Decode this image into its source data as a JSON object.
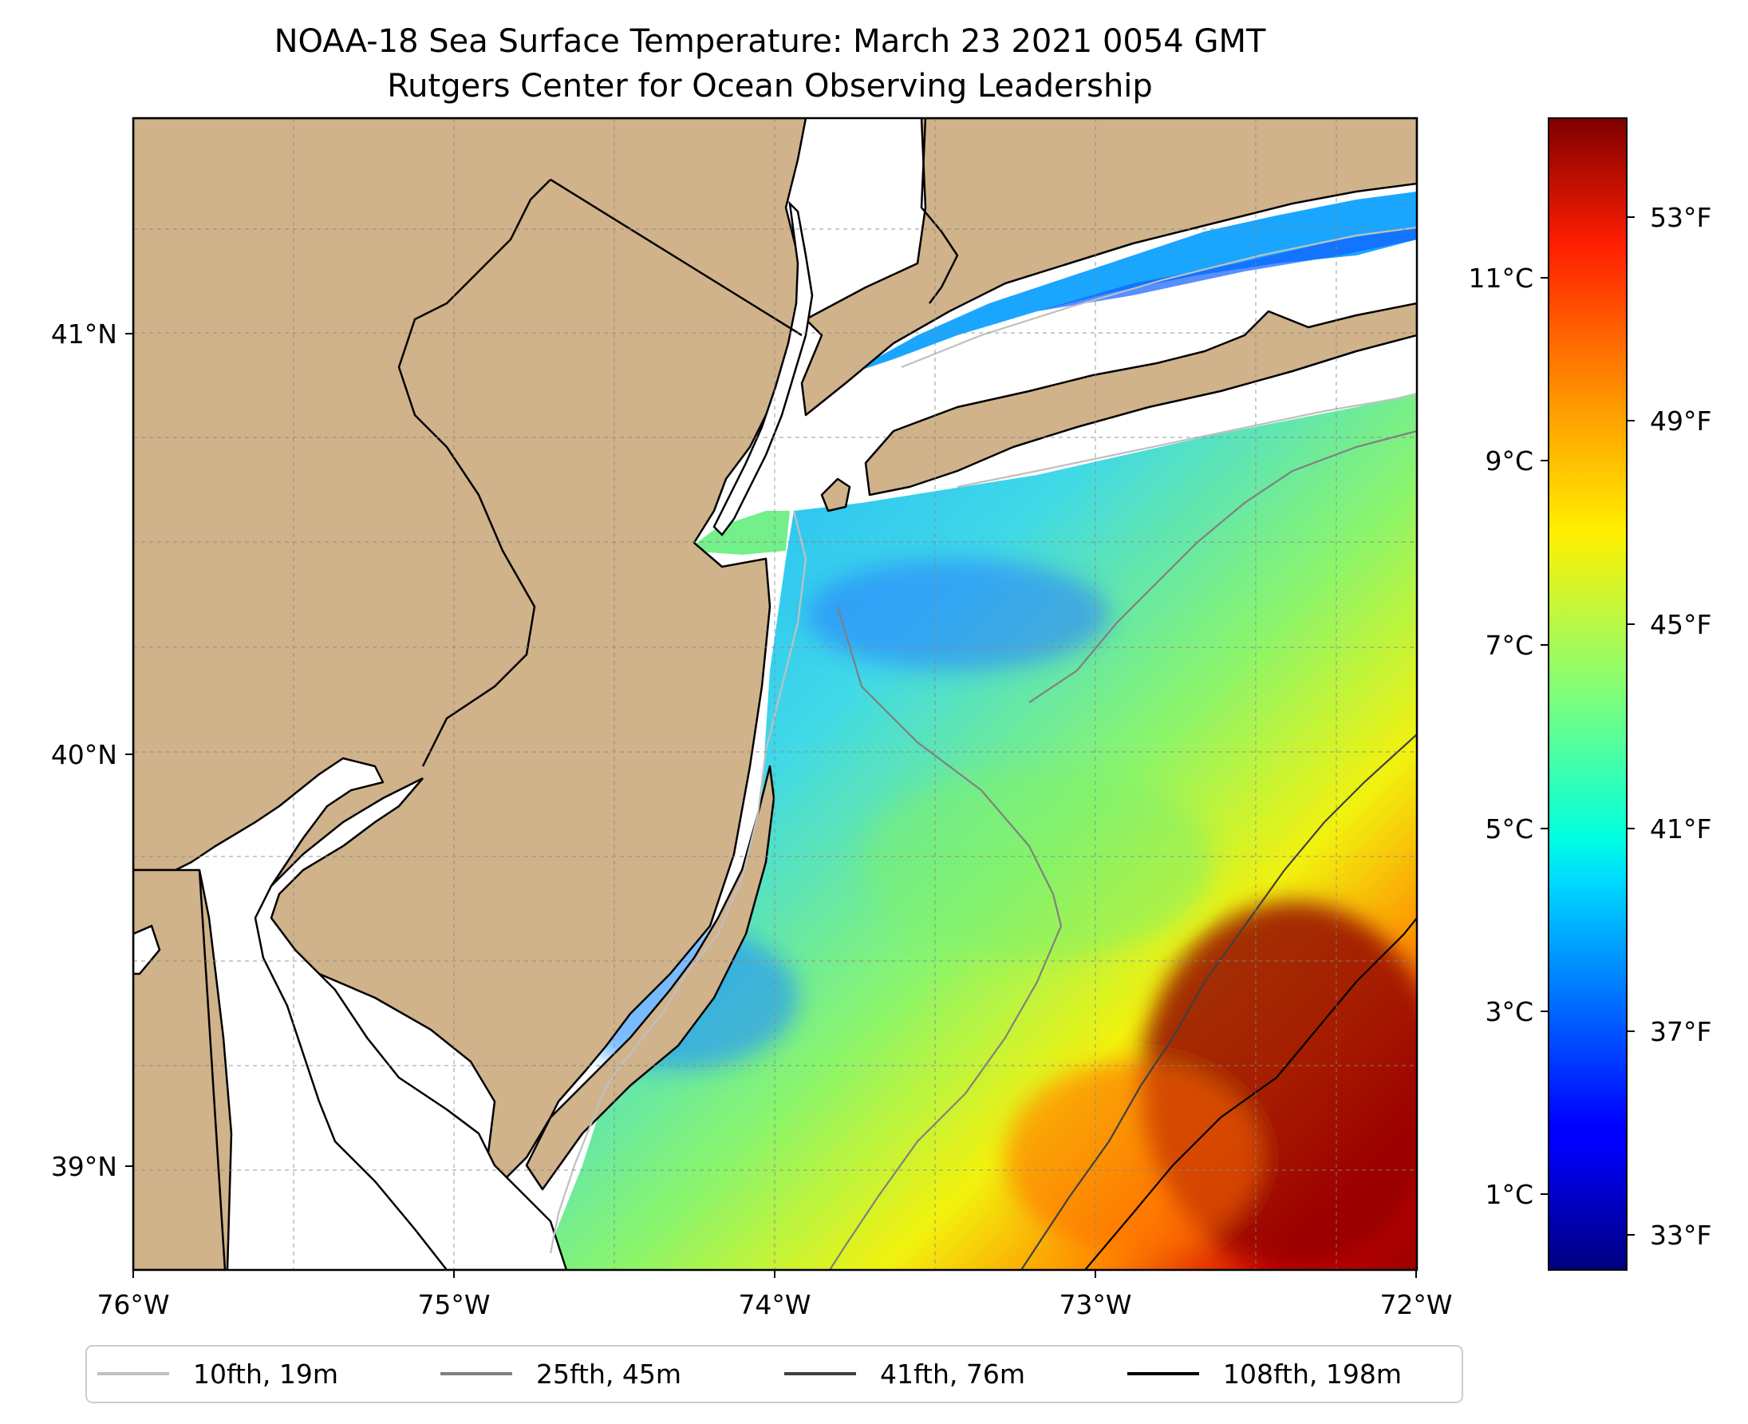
{
  "title": {
    "line1": "NOAA-18 Sea Surface Temperature: March 23 2021 0054 GMT",
    "line2": "Rutgers Center for Ocean Observing Leadership"
  },
  "map": {
    "lon_range": [
      -76,
      -72
    ],
    "lat_range": [
      38.75,
      41.55
    ],
    "x_tick_labels": [
      "76°W",
      "75°W",
      "74°W",
      "73°W",
      "72°W"
    ],
    "y_tick_labels": [
      "39°N",
      "40°N",
      "41°N"
    ],
    "gridlines": true,
    "land_color": "#d0b28b",
    "no_data_color": "#ffffff"
  },
  "colorbar": {
    "colormap": "jet",
    "celsius_range": [
      0.2,
      12.8
    ],
    "celsius_labels": [
      "1°C",
      "3°C",
      "5°C",
      "7°C",
      "9°C",
      "11°C"
    ],
    "fahrenheit_labels": [
      "33°F",
      "37°F",
      "41°F",
      "45°F",
      "49°F",
      "53°F"
    ]
  },
  "legend": {
    "placement": "below map",
    "items": [
      {
        "label": "10fth, 19m",
        "color": "#c0c0c0"
      },
      {
        "label": "25fth, 45m",
        "color": "#808080"
      },
      {
        "label": "41fth, 76m",
        "color": "#404040"
      },
      {
        "label": "108fth, 198m",
        "color": "#000000"
      }
    ]
  }
}
